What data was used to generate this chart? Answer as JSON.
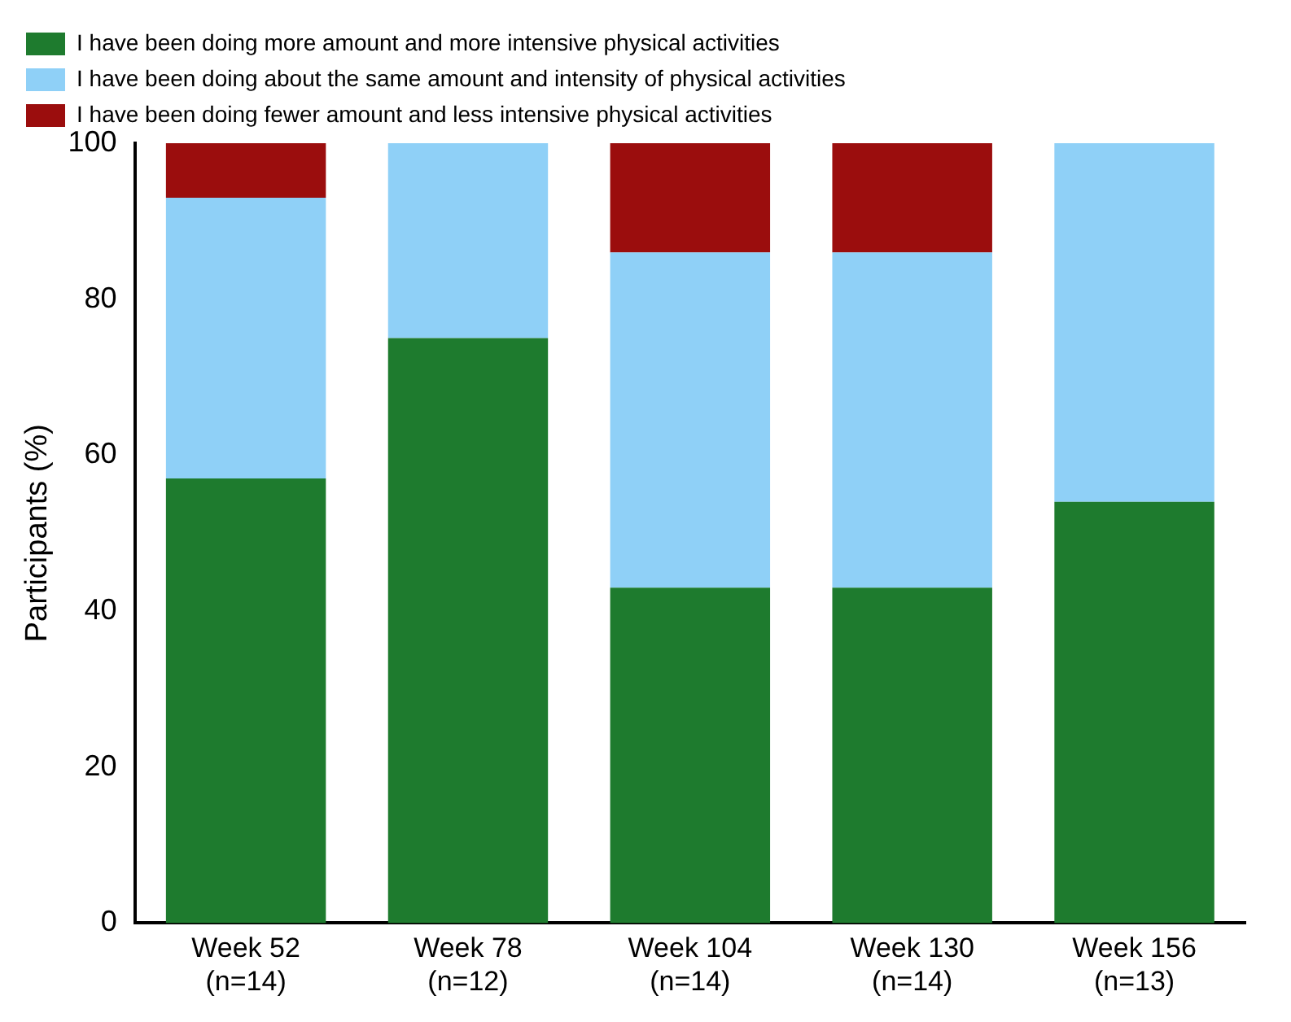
{
  "chart_data": {
    "type": "bar",
    "stacked": true,
    "ylabel": "Participants (%)",
    "categories": [
      "Week 52\n(n=14)",
      "Week 78\n(n=12)",
      "Week 104\n(n=14)",
      "Week 130\n(n=14)",
      "Week 156\n(n=13)"
    ],
    "series": [
      {
        "name": "I have been doing more amount and more intensive physical activities",
        "color": "#1e7b2e",
        "values": [
          57,
          75,
          43,
          43,
          54
        ]
      },
      {
        "name": "I have been doing about the same amount and intensity of physical activities",
        "color": "#8fd0f7",
        "values": [
          36,
          25,
          43,
          43,
          46
        ]
      },
      {
        "name": "I have been doing fewer amount and less intensive physical activities",
        "color": "#9b0d0d",
        "values": [
          7,
          0,
          14,
          14,
          0
        ]
      }
    ],
    "ylim": [
      0,
      100
    ],
    "yticks": [
      0,
      20,
      40,
      60,
      80,
      100
    ],
    "grid": false,
    "legend": "top"
  }
}
